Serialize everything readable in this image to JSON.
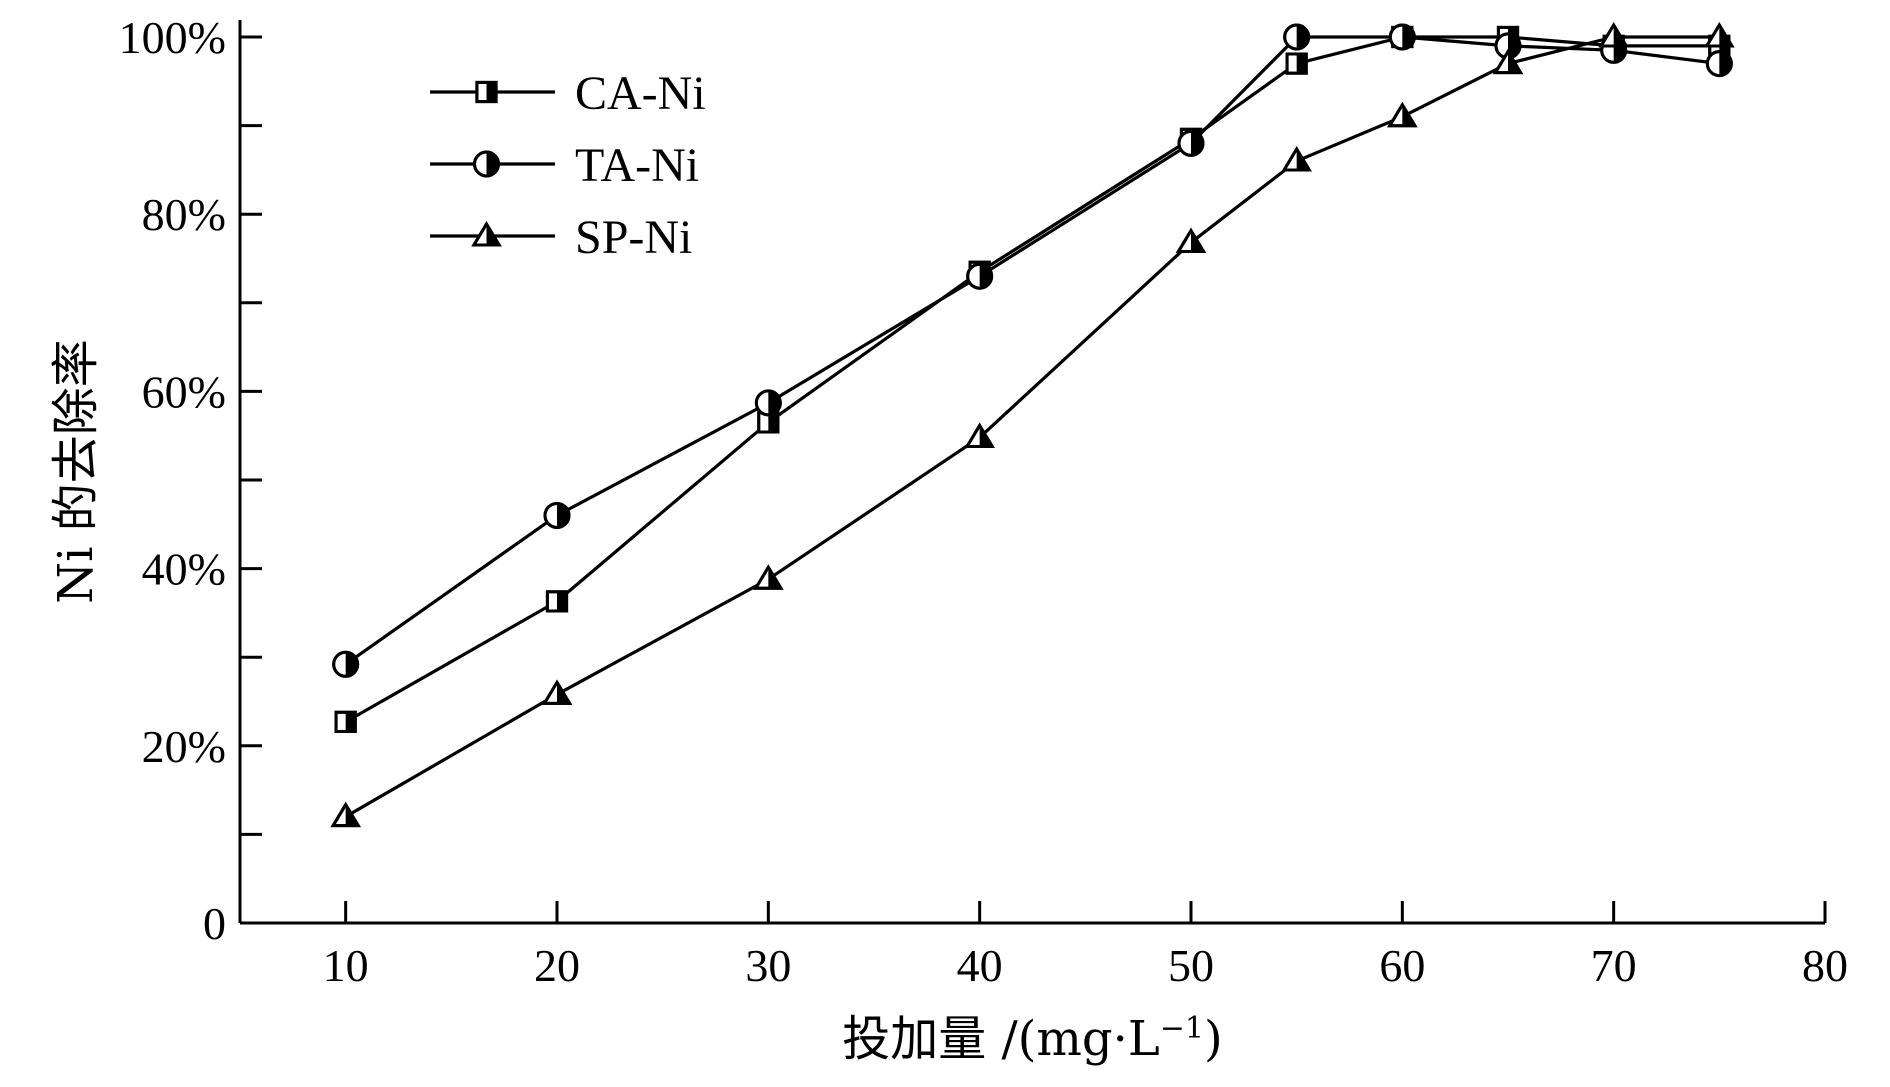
{
  "chart_data": {
    "type": "line",
    "title": "",
    "xlabel": "投加量 /(mg·L",
    "xlabel_sup": "−1",
    "xlabel_end": ")",
    "ylabel": "Ni 的去除率",
    "xlim": [
      5,
      80
    ],
    "ylim": [
      0,
      100
    ],
    "xticks": [
      10,
      20,
      30,
      40,
      50,
      60,
      70,
      80
    ],
    "xtick_labels": [
      "10",
      "20",
      "30",
      "40",
      "50",
      "60",
      "70",
      "80"
    ],
    "yticks": [
      0,
      10,
      20,
      30,
      40,
      50,
      60,
      70,
      80,
      90,
      100
    ],
    "ytick_labels": [
      "0",
      "",
      "20%",
      "",
      "40%",
      "",
      "60%",
      "",
      "80%",
      "",
      "100%"
    ],
    "grid": false,
    "legend_position": "top-left",
    "series": [
      {
        "name": "CA-Ni",
        "marker": "square-half",
        "x": [
          10,
          20,
          30,
          40,
          50,
          55,
          60,
          65,
          70,
          75
        ],
        "y": [
          22.7,
          36.3,
          56.5,
          73.5,
          88.5,
          97,
          100,
          100,
          99,
          99
        ]
      },
      {
        "name": "TA-Ni",
        "marker": "circle-half",
        "x": [
          10,
          20,
          30,
          40,
          50,
          55,
          60,
          65,
          70,
          75
        ],
        "y": [
          29.2,
          46,
          58.7,
          73,
          88,
          100,
          100,
          99,
          98.5,
          97
        ]
      },
      {
        "name": "SP-Ni",
        "marker": "triangle-half",
        "x": [
          10,
          20,
          30,
          40,
          50,
          55,
          60,
          65,
          70,
          75
        ],
        "y": [
          12,
          25.8,
          38.8,
          54.8,
          76.8,
          86,
          91,
          97,
          100,
          100
        ]
      }
    ]
  }
}
